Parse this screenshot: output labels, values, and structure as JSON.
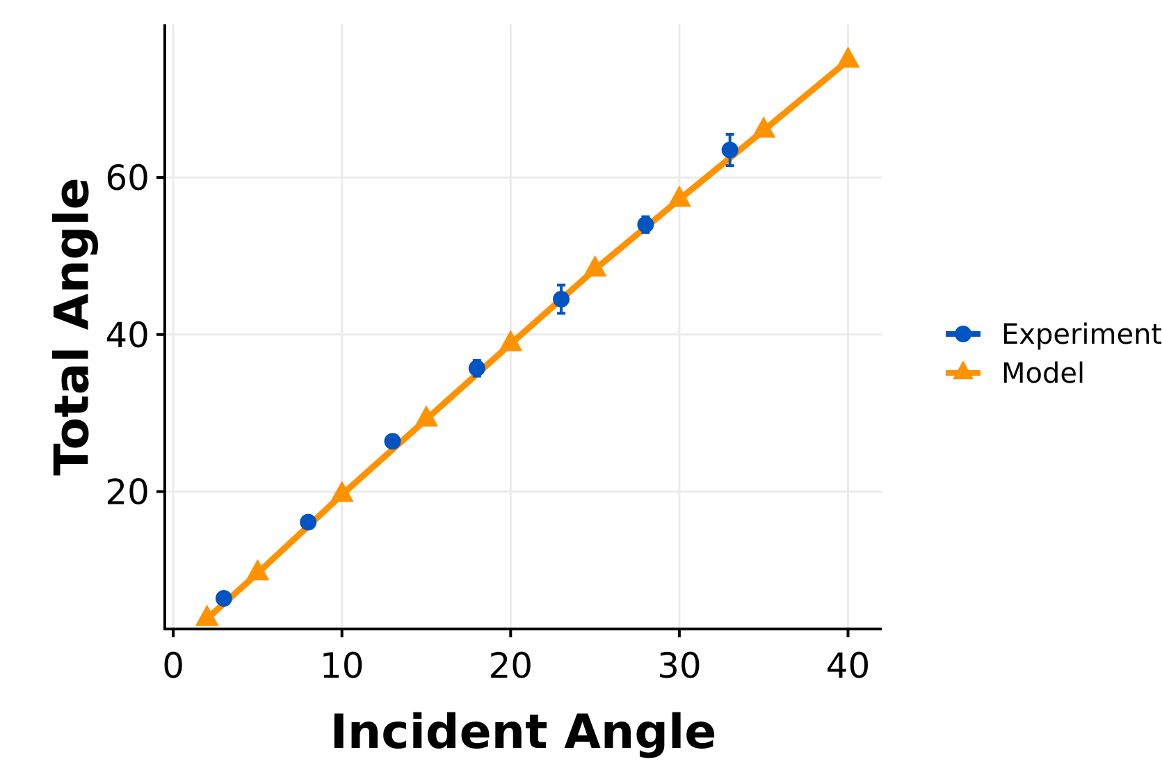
{
  "chart_data": {
    "type": "line",
    "title": "",
    "xlabel": "Incident Angle",
    "ylabel": "Total Angle",
    "xlim": [
      -0.5,
      42
    ],
    "ylim": [
      2.5,
      79.5
    ],
    "xticks": [
      0,
      10,
      20,
      30,
      40
    ],
    "yticks": [
      20,
      40,
      60
    ],
    "grid": true,
    "legend_position": "right",
    "series": [
      {
        "name": "Experiment",
        "marker": "circle",
        "color": "#0055c2",
        "error_bars": true,
        "points": [
          {
            "x": 3,
            "y": 6.4,
            "err": 0.5
          },
          {
            "x": 8,
            "y": 16.1,
            "err": 0.5
          },
          {
            "x": 13,
            "y": 26.4,
            "err": 0.5
          },
          {
            "x": 18,
            "y": 35.7,
            "err": 1.0
          },
          {
            "x": 23,
            "y": 44.5,
            "err": 1.8
          },
          {
            "x": 28,
            "y": 54.0,
            "err": 1.0
          },
          {
            "x": 33,
            "y": 63.5,
            "err": 2.0
          }
        ]
      },
      {
        "name": "Model",
        "marker": "triangle",
        "color": "#ff9200",
        "line": true,
        "points": [
          {
            "x": 2,
            "y": 3.8
          },
          {
            "x": 5,
            "y": 9.6
          },
          {
            "x": 10,
            "y": 19.6
          },
          {
            "x": 15,
            "y": 29.2
          },
          {
            "x": 20,
            "y": 38.8
          },
          {
            "x": 25,
            "y": 48.3
          },
          {
            "x": 30,
            "y": 57.2
          },
          {
            "x": 35,
            "y": 66.0
          },
          {
            "x": 40,
            "y": 74.9
          }
        ]
      }
    ]
  }
}
